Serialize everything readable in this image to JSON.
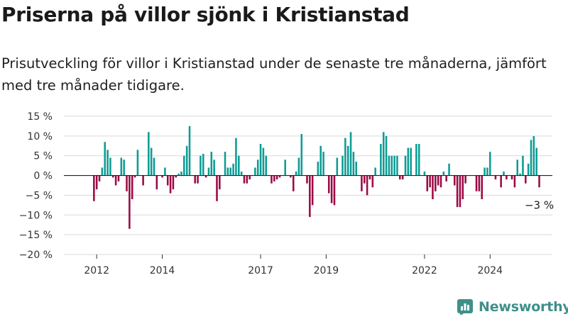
{
  "header": {
    "title": "Priserna på villor sjönk i Kristianstad",
    "subtitle": "Prisutveckling för villor i Kristianstad under de senaste tre månaderna, jämfört med tre månader tidigare."
  },
  "brand": {
    "name": "Newsworthy",
    "icon": "newsworthy-logo-icon"
  },
  "colors": {
    "positive": "#0d9c94",
    "negative": "#9b0a45",
    "grid": "#d9d9d9",
    "zero": "#222222"
  },
  "chart_data": {
    "type": "bar",
    "y_unit": "%",
    "ylim": [
      -20,
      15
    ],
    "yticks": [
      15,
      10,
      5,
      0,
      -5,
      -10,
      -15,
      -20
    ],
    "ytick_labels": [
      "15 %",
      "10 %",
      "5 %",
      "0 %",
      "−5 %",
      "−10 %",
      "−15 %",
      "−20 %"
    ],
    "grid": true,
    "xtick_labels": [
      "2012",
      "2014",
      "2017",
      "2019",
      "2022",
      "2024"
    ],
    "xtick_positions": [
      2012.0,
      2014.0,
      2017.0,
      2019.0,
      2022.0,
      2024.0
    ],
    "x_start": 2011.917,
    "x_step": 0.08333,
    "values": [
      -6.5,
      -3.5,
      -1.5,
      2,
      8.5,
      6.5,
      4.5,
      -0.5,
      -2.5,
      -1.5,
      4.5,
      4,
      -4,
      -13.5,
      -6,
      -0.5,
      6.5,
      0,
      -2.5,
      0,
      11,
      7,
      4.5,
      -3.5,
      0,
      -0.5,
      2,
      -2.5,
      -4.5,
      -3.5,
      -0.5,
      0.5,
      1,
      5,
      7.5,
      12.5,
      0,
      -2,
      -2,
      5,
      5.5,
      -0.5,
      2,
      6,
      4,
      -6.5,
      -3.5,
      0,
      6,
      2,
      2,
      3,
      9.5,
      5,
      1,
      -2,
      -2,
      -1,
      0,
      2,
      4,
      8,
      7,
      5,
      0,
      -2,
      -1.5,
      -1,
      -0.5,
      0,
      4,
      0,
      -0.5,
      -4,
      1,
      4.5,
      10.5,
      0,
      -2,
      -10.5,
      -7.5,
      0,
      3.5,
      7.5,
      6,
      0,
      -4.5,
      -7,
      -7.5,
      4.5,
      0,
      5,
      9.5,
      7.5,
      11,
      6,
      3.5,
      0,
      -4,
      -2,
      -5,
      -1,
      -3,
      2,
      0,
      8,
      11,
      10,
      5,
      5,
      5,
      5,
      -1,
      -1,
      5,
      7,
      7,
      0,
      8,
      8,
      0,
      1,
      -4,
      -3,
      -6,
      -4,
      -2.5,
      -3,
      1,
      -1.5,
      3,
      0,
      -2.5,
      -8,
      -8,
      -6,
      -2,
      0,
      0,
      0,
      -4,
      -4,
      -6,
      2,
      2,
      6,
      0,
      -1,
      0,
      -3,
      1,
      -1,
      0,
      -1,
      -3,
      4,
      0.5,
      5,
      -2,
      3,
      9,
      10,
      7,
      -3
    ],
    "annotations": [
      {
        "text": "−3 %"
      }
    ]
  }
}
